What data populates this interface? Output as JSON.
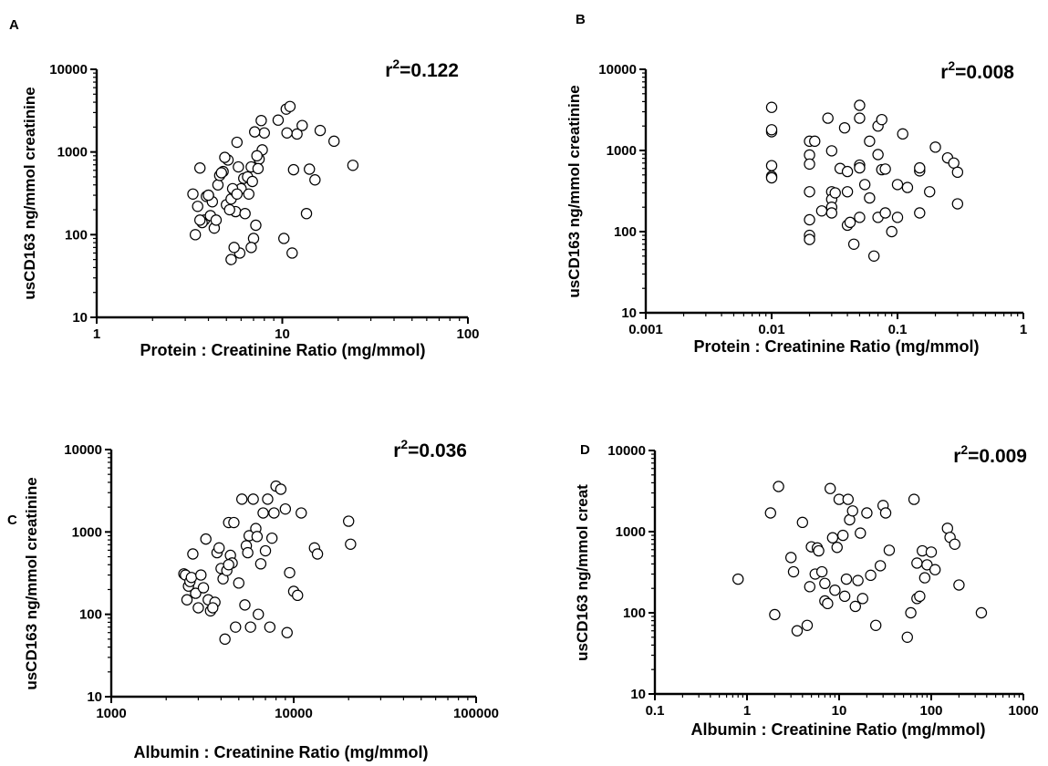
{
  "chart_data": [
    {
      "type": "scatter",
      "panel": "A",
      "annotation_base": "r",
      "annotation_exp": "2",
      "annotation_val": "=0.122",
      "xlabel": "Protein : Creatinine Ratio (mg/mmol)",
      "ylabel": "usCD163 ng/mmol creatinine",
      "xscale": "log",
      "yscale": "log",
      "xlim": [
        1,
        100
      ],
      "ylim": [
        10,
        10000
      ],
      "xticks": [
        "1",
        "10",
        "100"
      ],
      "yticks": [
        "10",
        "100",
        "1000",
        "10000"
      ],
      "x": [
        3.3,
        3.5,
        3.6,
        3.8,
        4.0,
        4.1,
        4.3,
        4.5,
        4.6,
        4.8,
        5.0,
        5.1,
        5.3,
        5.5,
        5.6,
        5.8,
        6.0,
        6.2,
        6.5,
        6.8,
        7.0,
        7.2,
        7.5,
        7.8,
        8.0,
        3.4,
        3.7,
        3.9,
        4.2,
        4.4,
        4.7,
        4.9,
        5.2,
        5.4,
        5.7,
        5.9,
        6.3,
        6.6,
        6.9,
        7.1,
        7.4,
        7.7,
        9.5,
        10.2,
        10.5,
        11.0,
        11.5,
        12.0,
        12.8,
        13.5,
        14.0,
        15.0,
        16.0,
        19.0,
        24.0,
        3.6,
        4.0,
        5.5,
        6.8,
        7.3,
        5.3,
        5.7,
        11.3,
        10.6
      ],
      "y": [
        310,
        220,
        640,
        150,
        300,
        170,
        120,
        400,
        520,
        580,
        230,
        800,
        270,
        340,
        190,
        660,
        360,
        480,
        500,
        660,
        90,
        130,
        820,
        1060,
        1700,
        100,
        140,
        290,
        250,
        150,
        560,
        860,
        200,
        360,
        1310,
        60,
        180,
        310,
        440,
        1750,
        630,
        2400,
        2430,
        90,
        3300,
        3550,
        610,
        1650,
        2090,
        180,
        620,
        460,
        1820,
        1350,
        690,
        150,
        300,
        70,
        70,
        900,
        50,
        310,
        60,
        1700
      ]
    },
    {
      "type": "scatter",
      "panel": "B",
      "annotation_base": "r",
      "annotation_exp": "2",
      "annotation_val": "=0.008",
      "xlabel": "Protein : Creatinine Ratio (mg/mmol)",
      "ylabel": "usCD163 ng/mmol creatinine",
      "xscale": "log",
      "yscale": "log",
      "xlim": [
        0.001,
        1
      ],
      "ylim": [
        10,
        10000
      ],
      "xticks": [
        "0.001",
        "0.01",
        "0.1",
        "1"
      ],
      "yticks": [
        "10",
        "100",
        "1000",
        "10000"
      ],
      "x": [
        0.01,
        0.01,
        0.01,
        0.01,
        0.01,
        0.01,
        0.02,
        0.02,
        0.02,
        0.02,
        0.02,
        0.02,
        0.02,
        0.022,
        0.025,
        0.028,
        0.03,
        0.03,
        0.03,
        0.03,
        0.03,
        0.032,
        0.035,
        0.038,
        0.04,
        0.04,
        0.04,
        0.042,
        0.045,
        0.05,
        0.05,
        0.05,
        0.05,
        0.05,
        0.055,
        0.06,
        0.06,
        0.065,
        0.07,
        0.07,
        0.07,
        0.075,
        0.075,
        0.08,
        0.08,
        0.09,
        0.1,
        0.1,
        0.11,
        0.12,
        0.15,
        0.15,
        0.15,
        0.18,
        0.2,
        0.25,
        0.28,
        0.3,
        0.3
      ],
      "y": [
        3400,
        1700,
        1800,
        650,
        480,
        460,
        1300,
        880,
        680,
        310,
        140,
        90,
        80,
        1300,
        180,
        2500,
        990,
        310,
        250,
        200,
        170,
        300,
        600,
        1900,
        550,
        310,
        120,
        130,
        70,
        3600,
        2500,
        660,
        610,
        150,
        380,
        260,
        1300,
        50,
        890,
        2000,
        150,
        2400,
        580,
        590,
        170,
        100,
        380,
        150,
        1600,
        350,
        560,
        610,
        170,
        310,
        1100,
        810,
        700,
        540,
        220
      ]
    },
    {
      "type": "scatter",
      "panel": "C",
      "annotation_base": "r",
      "annotation_exp": "2",
      "annotation_val": "=0.036",
      "xlabel": "Albumin : Creatinine Ratio (mg/mmol)",
      "ylabel": "usCD163 ng/mmol creatinine",
      "xscale": "log",
      "yscale": "log",
      "xlim": [
        1000,
        100000
      ],
      "ylim": [
        10,
        10000
      ],
      "xticks": [
        "1000",
        "10000",
        "100000"
      ],
      "yticks": [
        "10",
        "100",
        "1000",
        "10000"
      ],
      "x": [
        2500,
        2550,
        2600,
        2650,
        2700,
        2750,
        2800,
        2900,
        3000,
        3100,
        3200,
        3300,
        3400,
        3500,
        3700,
        3800,
        3900,
        4000,
        4100,
        4200,
        4300,
        4400,
        4500,
        4600,
        4700,
        4800,
        5000,
        5200,
        5400,
        5500,
        5600,
        5700,
        5800,
        6000,
        6200,
        6400,
        6600,
        6800,
        7000,
        7200,
        7400,
        7600,
        7800,
        8000,
        8500,
        9000,
        9200,
        9500,
        10000,
        10500,
        11000,
        13000,
        13500,
        20000,
        20500,
        3600,
        4400,
        6300
      ],
      "y": [
        310,
        300,
        150,
        220,
        250,
        280,
        540,
        180,
        120,
        300,
        210,
        820,
        150,
        110,
        140,
        560,
        640,
        360,
        270,
        50,
        340,
        1300,
        520,
        420,
        1300,
        70,
        240,
        2500,
        130,
        680,
        560,
        900,
        70,
        2500,
        1100,
        100,
        410,
        1700,
        590,
        2500,
        70,
        840,
        1700,
        3600,
        3300,
        1900,
        60,
        320,
        190,
        170,
        1700,
        640,
        540,
        1350,
        710,
        120,
        400,
        880
      ]
    },
    {
      "type": "scatter",
      "panel": "D",
      "annotation_base": "r",
      "annotation_exp": "2",
      "annotation_val": "=0.009",
      "xlabel": "Albumin : Creatinine Ratio (mg/mmol)",
      "ylabel": "usCD163 ng/mmol creat",
      "xscale": "log",
      "yscale": "log",
      "xlim": [
        0.1,
        1000
      ],
      "ylim": [
        10,
        10000
      ],
      "xticks": [
        "0.1",
        "1",
        "10",
        "100",
        "1000"
      ],
      "yticks": [
        "10",
        "100",
        "1000",
        "10000"
      ],
      "x": [
        0.8,
        1.8,
        2.0,
        2.2,
        3.0,
        3.5,
        3.2,
        4.0,
        4.5,
        4.8,
        5.0,
        5.5,
        5.8,
        6.0,
        6.5,
        7.0,
        7.5,
        8.0,
        8.5,
        9.0,
        9.5,
        10.0,
        11.0,
        11.5,
        12.0,
        12.5,
        13.0,
        14.0,
        15.0,
        16.0,
        17.0,
        18.0,
        20.0,
        22.0,
        25.0,
        28.0,
        30.0,
        32.0,
        35.0,
        55.0,
        60.0,
        65.0,
        70.0,
        70.0,
        75.0,
        80.0,
        85.0,
        90.0,
        100.0,
        110.0,
        150.0,
        160.0,
        180.0,
        200.0,
        350.0,
        7.0
      ],
      "y": [
        260,
        1700,
        95,
        3600,
        480,
        60,
        320,
        1300,
        70,
        210,
        650,
        300,
        630,
        580,
        320,
        140,
        130,
        3400,
        840,
        190,
        640,
        2500,
        900,
        160,
        260,
        2500,
        1400,
        1800,
        120,
        250,
        960,
        150,
        1700,
        290,
        70,
        380,
        2100,
        1700,
        590,
        50,
        100,
        2500,
        410,
        150,
        160,
        580,
        270,
        390,
        560,
        340,
        1100,
        850,
        700,
        220,
        100,
        230
      ]
    }
  ]
}
